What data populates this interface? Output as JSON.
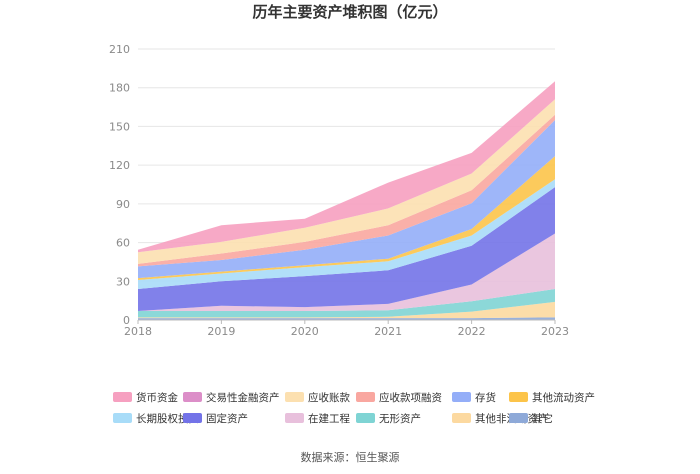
{
  "chart_data": {
    "type": "area",
    "stacked": true,
    "title": "历年主要资产堆积图（亿元）",
    "x": [
      "2018",
      "2019",
      "2020",
      "2021",
      "2022",
      "2023"
    ],
    "yticks": [
      "0",
      "30",
      "60",
      "90",
      "120",
      "150",
      "180",
      "210"
    ],
    "ylim": [
      0,
      210
    ],
    "grid": true,
    "legend_position": "bottom",
    "series": [
      {
        "name": "其它",
        "color": "#8ea9d8",
        "values": [
          1.5,
          1.5,
          1.5,
          1.5,
          1.5,
          2
        ]
      },
      {
        "name": "其他非流动资产",
        "color": "#fcd9a0",
        "values": [
          0.5,
          0.5,
          0.5,
          1,
          5,
          12
        ]
      },
      {
        "name": "无形资产",
        "color": "#7fd4d4",
        "values": [
          5,
          5,
          5,
          5,
          8,
          10
        ]
      },
      {
        "name": "在建工程",
        "color": "#e8c0dc",
        "values": [
          0,
          4,
          3,
          5,
          13,
          43
        ]
      },
      {
        "name": "固定资产",
        "color": "#7373e8",
        "values": [
          17,
          19,
          24,
          26,
          30,
          36
        ]
      },
      {
        "name": "长期股权投资",
        "color": "#a8dcf8",
        "values": [
          7,
          6,
          7,
          7,
          8,
          6
        ]
      },
      {
        "name": "其他流动资产",
        "color": "#fcc44a",
        "values": [
          1.5,
          1.5,
          1.5,
          2,
          5,
          18
        ]
      },
      {
        "name": "存货",
        "color": "#94aef8",
        "values": [
          9,
          9,
          12,
          18,
          20,
          28
        ]
      },
      {
        "name": "应收款项融资",
        "color": "#f9a7a0",
        "values": [
          2,
          5,
          6,
          8,
          10,
          4
        ]
      },
      {
        "name": "应收账款",
        "color": "#fce0b0",
        "values": [
          9,
          9,
          11,
          13,
          13,
          12
        ]
      },
      {
        "name": "交易性金融资产",
        "color": "#dc8ec8",
        "values": [
          0,
          0,
          0,
          0,
          0,
          0
        ]
      },
      {
        "name": "货币资金",
        "color": "#f6a0c0",
        "values": [
          2,
          13,
          7,
          20,
          16,
          14
        ]
      }
    ],
    "legend_order": [
      "货币资金",
      "交易性金融资产",
      "应收账款",
      "应收款项融资",
      "存货",
      "其他流动资产",
      "长期股权投资",
      "固定资产",
      "在建工程",
      "无形资产",
      "其他非流动资产",
      "其它"
    ]
  },
  "source": "数据来源：恒生聚源"
}
